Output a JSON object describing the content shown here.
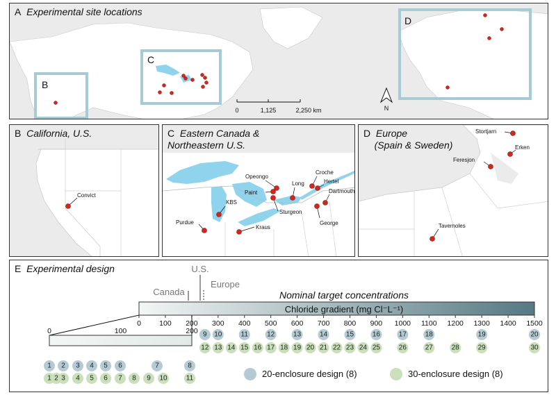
{
  "panel_a": {
    "title_letter": "A",
    "title": "Experimental site locations",
    "inset_b": "B",
    "inset_c": "C",
    "inset_d": "D",
    "scale_labels": [
      "0",
      "1,125",
      "2,250 km"
    ],
    "north": "N"
  },
  "panel_b": {
    "title_letter": "B",
    "title": "California, U.S.",
    "sites": [
      "Convict"
    ]
  },
  "panel_c": {
    "title_letter": "C",
    "title_line1": "Eastern Canada &",
    "title_line2": "Northeastern U.S.",
    "sites": [
      "Opeongo",
      "Paint",
      "KBS",
      "Purdue",
      "Kraus",
      "Sturgeon",
      "Long",
      "Croche",
      "Hertel",
      "Dartmouth",
      "George"
    ]
  },
  "panel_d": {
    "title_letter": "D",
    "title_line1": "Europe",
    "title_line2": "(Spain & Sweden)",
    "sites": [
      "Stortjarn",
      "Erken",
      "Feresjon",
      "Tavernoles"
    ]
  },
  "panel_e": {
    "title_letter": "E",
    "title": "Experimental design",
    "marker_us": "U.S.",
    "marker_canada": "Canada",
    "marker_europe": "Europe",
    "nominal_label": "Nominal target concentrations",
    "gradient_label": "Chloride gradient (mg Cl⁻L⁻¹)",
    "main_ticks": [
      "0",
      "100",
      "200",
      "300",
      "400",
      "500",
      "600",
      "700",
      "800",
      "900",
      "1000",
      "1100",
      "1200",
      "1300",
      "1400",
      "1500"
    ],
    "zoom_ticks": [
      "0",
      "100",
      "200"
    ],
    "legend_20": "20-enclosure design (8)",
    "legend_30": "30-enclosure design (8)",
    "colors": {
      "blue": "#b5cbd3",
      "green": "#c9e0bb",
      "gradient_start": "#f3f6f5",
      "gradient_end": "#567983",
      "site": "#d3271d",
      "water": "#8fd3ec",
      "inset": "#a7cbd4"
    }
  },
  "chart_data": {
    "type": "scatter",
    "title": "Nominal target concentrations",
    "xlabel": "Chloride gradient (mg Cl⁻L⁻¹)",
    "xlim": [
      0,
      1500
    ],
    "series": [
      {
        "name": "20-enclosure design (8)",
        "labels": [
          "1",
          "2",
          "3",
          "4",
          "5",
          "6",
          "7",
          "8",
          "9",
          "10",
          "11",
          "12",
          "13",
          "14",
          "15",
          "16",
          "17",
          "18",
          "19",
          "20"
        ],
        "x": [
          0,
          10,
          20,
          30,
          40,
          50,
          80,
          100,
          250,
          300,
          400,
          500,
          600,
          700,
          800,
          900,
          1000,
          1100,
          1300,
          1500
        ]
      },
      {
        "name": "30-enclosure design (8)",
        "labels": [
          "1",
          "2",
          "3",
          "4",
          "5",
          "6",
          "7",
          "8",
          "9",
          "10",
          "11",
          "12",
          "13",
          "14",
          "15",
          "16",
          "17",
          "18",
          "19",
          "20",
          "21",
          "22",
          "23",
          "24",
          "25",
          "26",
          "27",
          "28",
          "29",
          "30"
        ],
        "x": [
          0,
          3,
          5,
          10,
          20,
          30,
          40,
          50,
          60,
          70,
          100,
          250,
          300,
          350,
          400,
          450,
          500,
          550,
          600,
          650,
          700,
          750,
          800,
          850,
          900,
          1000,
          1100,
          1200,
          1300,
          1500
        ]
      }
    ]
  }
}
